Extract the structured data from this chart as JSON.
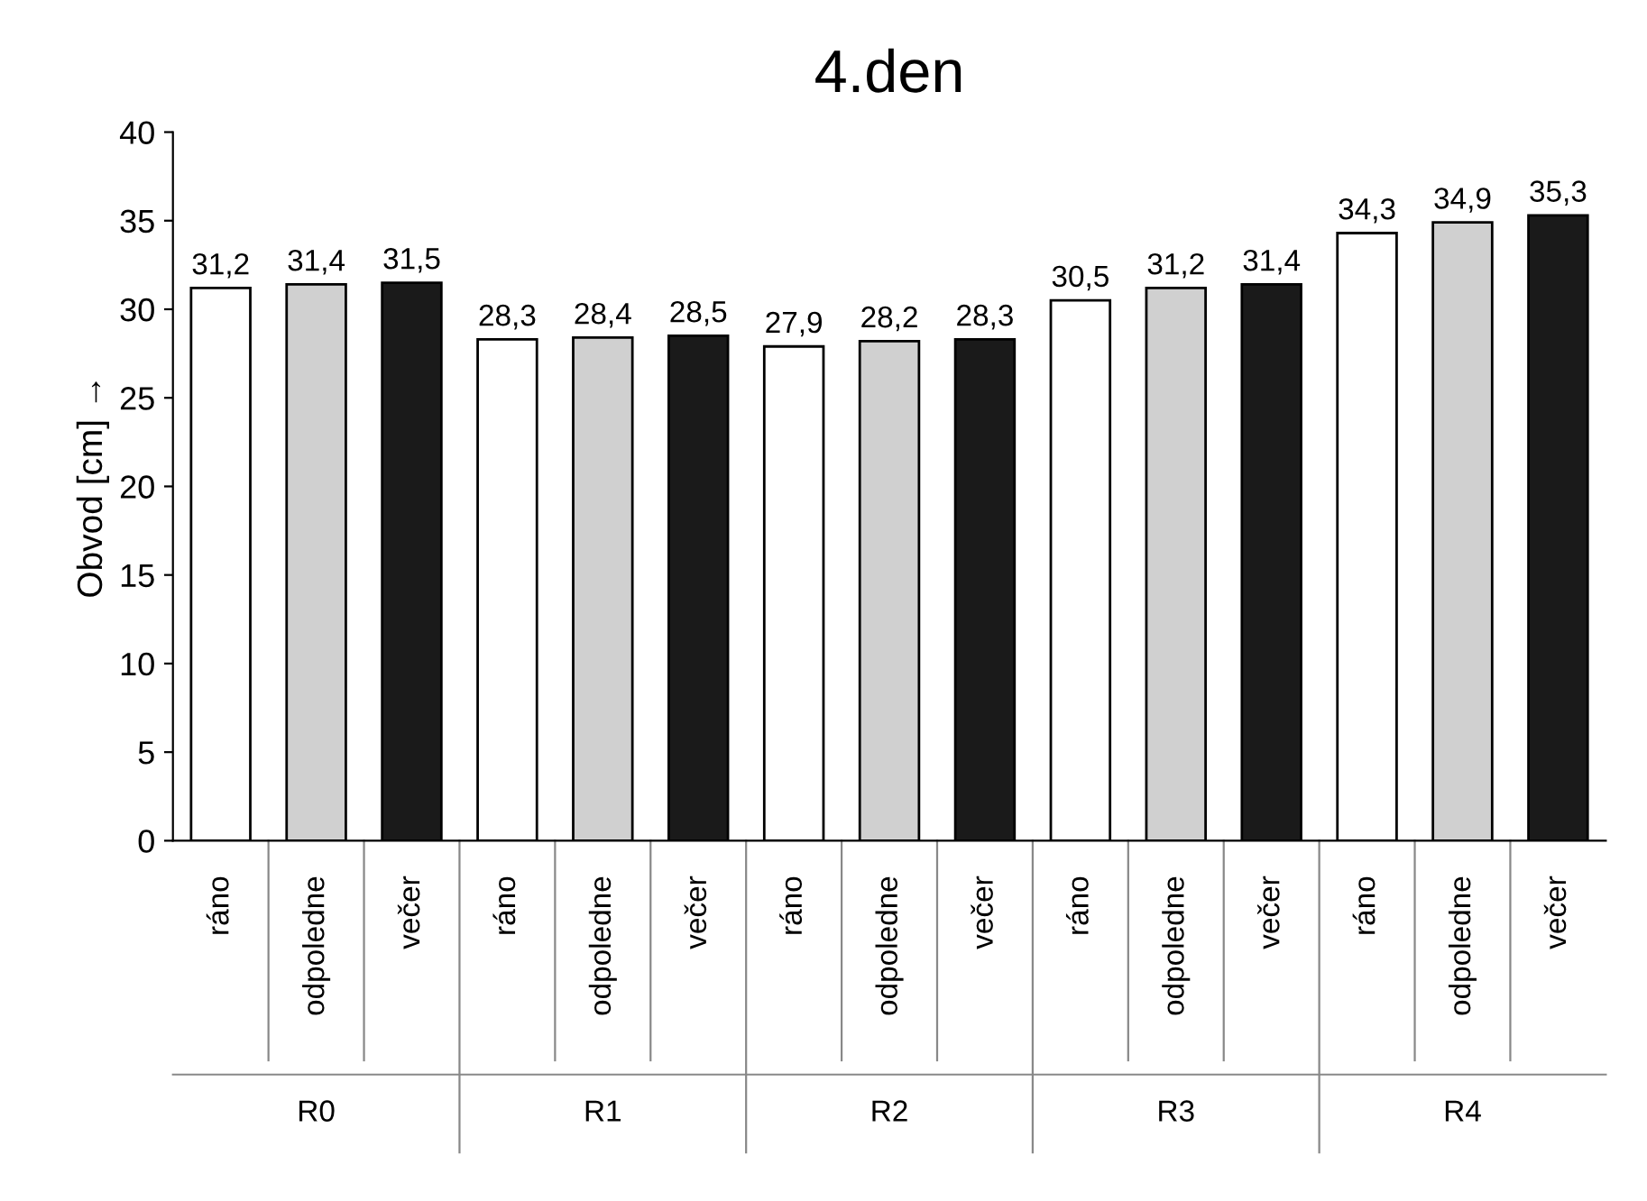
{
  "chart_data": {
    "type": "bar",
    "title": "4.den",
    "ylabel": "Obvod [cm] →",
    "categories": [
      "ráno",
      "odpoledne",
      "večer",
      "ráno",
      "odpoledne",
      "večer",
      "ráno",
      "odpoledne",
      "večer",
      "ráno",
      "odpoledne",
      "večer",
      "ráno",
      "odpoledne",
      "večer"
    ],
    "values": [
      31.2,
      31.4,
      31.5,
      28.3,
      28.4,
      28.5,
      27.9,
      28.2,
      28.3,
      30.5,
      31.2,
      31.4,
      34.3,
      34.9,
      35.3
    ],
    "value_labels": [
      "31,2",
      "31,4",
      "31,5",
      "28,3",
      "28,4",
      "28,5",
      "27,9",
      "28,2",
      "28,3",
      "30,5",
      "31,2",
      "31,4",
      "34,3",
      "34,9",
      "35,3"
    ],
    "colors": [
      "#ffffff",
      "#d0d0d0",
      "#1a1a1a",
      "#ffffff",
      "#d0d0d0",
      "#1a1a1a",
      "#ffffff",
      "#d0d0d0",
      "#1a1a1a",
      "#ffffff",
      "#d0d0d0",
      "#1a1a1a",
      "#ffffff",
      "#d0d0d0",
      "#1a1a1a"
    ],
    "annotations": [
      "R0",
      "R1",
      "R2",
      "R3",
      "R4"
    ],
    "ylim": [
      0,
      40
    ],
    "yticks": [
      0,
      5,
      10,
      15,
      20,
      25,
      30,
      35,
      40
    ],
    "grid": false,
    "legend": false
  }
}
